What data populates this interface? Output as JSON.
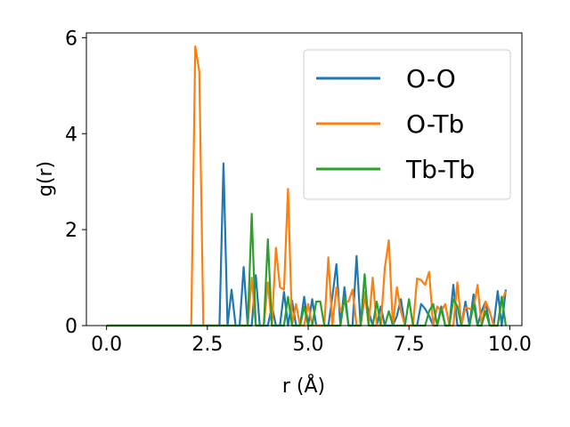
{
  "chart_data": {
    "type": "line",
    "title": "",
    "xlabel": "r (Å)",
    "ylabel": "g(r)",
    "xlim": [
      -0.5,
      10.3
    ],
    "ylim": [
      0,
      6.1
    ],
    "xticks": [
      0.0,
      2.5,
      5.0,
      7.5,
      10.0
    ],
    "xtick_labels": [
      "0.0",
      "2.5",
      "5.0",
      "7.5",
      "10.0"
    ],
    "yticks": [
      0,
      2,
      4,
      6
    ],
    "ytick_labels": [
      "0",
      "2",
      "4",
      "6"
    ],
    "grid": false,
    "legend_position": "top-right",
    "series": [
      {
        "name": "O-O",
        "color": "#1f77b4",
        "x": [
          0.0,
          2.7,
          2.8,
          2.9,
          3.0,
          3.1,
          3.2,
          3.3,
          3.4,
          3.5,
          3.6,
          3.7,
          3.8,
          3.9,
          4.0,
          4.1,
          4.2,
          4.3,
          4.4,
          4.5,
          4.6,
          4.7,
          4.8,
          4.9,
          5.0,
          5.1,
          5.2,
          5.3,
          5.4,
          5.5,
          5.6,
          5.7,
          5.8,
          5.9,
          6.0,
          6.1,
          6.2,
          6.3,
          6.4,
          6.5,
          6.6,
          6.7,
          6.8,
          6.9,
          7.0,
          7.1,
          7.2,
          7.3,
          7.4,
          7.5,
          7.6,
          7.7,
          7.8,
          7.9,
          8.0,
          8.1,
          8.2,
          8.3,
          8.4,
          8.5,
          8.6,
          8.7,
          8.8,
          8.9,
          9.0,
          9.1,
          9.2,
          9.3,
          9.4,
          9.5,
          9.6,
          9.7,
          9.8,
          9.9
        ],
        "y": [
          0.0,
          0.0,
          0.0,
          3.38,
          0.0,
          0.75,
          0.0,
          0.0,
          1.22,
          0.0,
          0.0,
          1.05,
          0.0,
          0.0,
          0.0,
          0.4,
          0.0,
          0.0,
          0.7,
          0.0,
          0.52,
          0.0,
          0.0,
          0.6,
          0.0,
          0.55,
          0.0,
          0.0,
          0.0,
          0.0,
          0.6,
          1.28,
          0.0,
          0.8,
          0.0,
          0.0,
          1.45,
          0.0,
          0.6,
          0.3,
          0.0,
          0.0,
          0.4,
          0.0,
          0.0,
          0.0,
          0.2,
          0.55,
          0.0,
          0.0,
          0.0,
          0.0,
          0.45,
          0.35,
          0.2,
          0.0,
          0.0,
          0.4,
          0.0,
          0.0,
          0.85,
          0.0,
          0.0,
          0.5,
          0.0,
          0.65,
          0.0,
          0.3,
          0.5,
          0.0,
          0.0,
          0.72,
          0.0,
          0.75
        ]
      },
      {
        "name": "O-Tb",
        "color": "#ff7f0e",
        "x": [
          0.0,
          2.1,
          2.2,
          2.3,
          2.4,
          3.4,
          3.5,
          3.6,
          3.7,
          3.8,
          3.9,
          4.0,
          4.1,
          4.2,
          4.3,
          4.4,
          4.5,
          4.6,
          4.7,
          4.8,
          4.9,
          5.0,
          5.1,
          5.2,
          5.3,
          5.4,
          5.5,
          5.6,
          5.7,
          5.8,
          5.9,
          6.0,
          6.1,
          6.2,
          6.3,
          6.4,
          6.5,
          6.6,
          6.7,
          6.8,
          6.9,
          7.0,
          7.1,
          7.2,
          7.3,
          7.4,
          7.5,
          7.6,
          7.7,
          7.8,
          7.9,
          8.0,
          8.1,
          8.2,
          8.3,
          8.4,
          8.5,
          8.6,
          8.7,
          8.8,
          8.9,
          9.0,
          9.1,
          9.2,
          9.3,
          9.4,
          9.5,
          9.6,
          9.7,
          9.8,
          9.9
        ],
        "y": [
          0.0,
          0.0,
          5.82,
          5.3,
          0.0,
          0.0,
          0.0,
          1.0,
          0.0,
          0.0,
          0.0,
          0.9,
          0.0,
          1.62,
          0.8,
          0.75,
          2.85,
          0.0,
          0.45,
          0.0,
          0.0,
          0.45,
          0.0,
          0.0,
          0.0,
          0.0,
          1.42,
          0.0,
          0.8,
          0.3,
          0.5,
          0.5,
          0.75,
          0.0,
          0.0,
          0.7,
          0.0,
          1.0,
          0.0,
          0.0,
          1.2,
          1.78,
          0.0,
          0.8,
          0.3,
          0.0,
          0.0,
          0.0,
          0.98,
          0.95,
          0.85,
          1.12,
          0.0,
          0.4,
          0.3,
          0.45,
          0.0,
          0.0,
          0.9,
          0.0,
          0.38,
          0.35,
          0.35,
          0.85,
          0.0,
          0.5,
          0.3,
          0.0,
          0.0,
          0.5,
          0.72
        ]
      },
      {
        "name": "Tb-Tb",
        "color": "#2ca02c",
        "x": [
          0.0,
          3.4,
          3.5,
          3.6,
          3.7,
          3.8,
          3.9,
          4.0,
          4.1,
          4.2,
          4.3,
          4.4,
          4.5,
          4.6,
          4.7,
          4.8,
          4.9,
          5.0,
          5.1,
          5.2,
          5.3,
          5.4,
          5.5,
          5.6,
          5.7,
          5.8,
          5.9,
          6.0,
          6.1,
          6.2,
          6.3,
          6.4,
          6.5,
          6.6,
          6.7,
          6.8,
          6.9,
          7.0,
          7.1,
          7.2,
          7.3,
          7.4,
          7.5,
          7.6,
          7.7,
          7.8,
          7.9,
          8.0,
          8.1,
          8.2,
          8.3,
          8.4,
          8.5,
          8.6,
          8.7,
          8.8,
          8.9,
          9.0,
          9.1,
          9.2,
          9.3,
          9.4,
          9.5,
          9.6,
          9.7,
          9.8,
          9.9
        ],
        "y": [
          0.0,
          0.0,
          0.0,
          2.33,
          0.0,
          0.0,
          0.0,
          1.8,
          0.0,
          0.0,
          0.0,
          0.0,
          0.6,
          0.0,
          0.0,
          0.0,
          0.4,
          0.0,
          0.0,
          0.5,
          0.5,
          0.0,
          0.0,
          0.0,
          0.0,
          0.0,
          0.6,
          0.0,
          0.0,
          0.0,
          0.0,
          1.07,
          0.0,
          0.0,
          0.5,
          0.0,
          0.0,
          0.3,
          0.0,
          0.0,
          0.0,
          0.0,
          0.55,
          0.0,
          0.0,
          0.0,
          0.0,
          0.3,
          0.45,
          0.0,
          0.35,
          0.0,
          0.0,
          0.55,
          0.4,
          0.0,
          0.0,
          0.0,
          0.45,
          0.0,
          0.0,
          0.3,
          0.0,
          0.0,
          0.0,
          0.6,
          0.0
        ]
      }
    ]
  }
}
